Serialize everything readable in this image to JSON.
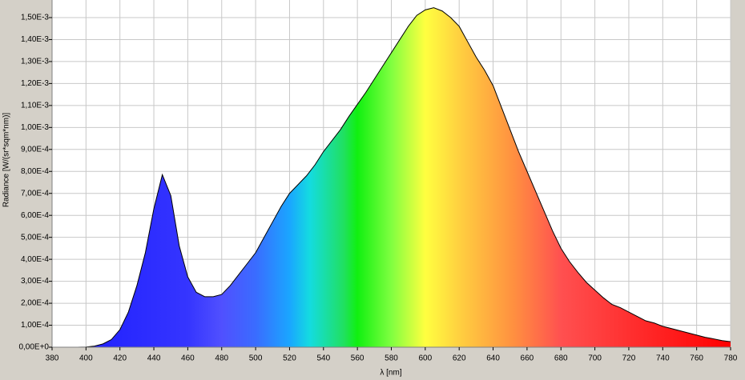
{
  "chart_data": {
    "type": "area",
    "xlabel": "λ [nm]",
    "ylabel": "Radiance [W/(sr*sqm*nm)]",
    "x": [
      380,
      385,
      390,
      395,
      400,
      405,
      410,
      415,
      420,
      425,
      430,
      435,
      440,
      445,
      450,
      455,
      460,
      465,
      470,
      475,
      480,
      485,
      490,
      495,
      500,
      505,
      510,
      515,
      520,
      525,
      530,
      535,
      540,
      545,
      550,
      555,
      560,
      565,
      570,
      575,
      580,
      585,
      590,
      595,
      600,
      605,
      610,
      615,
      620,
      625,
      630,
      635,
      640,
      645,
      650,
      655,
      660,
      665,
      670,
      675,
      680,
      685,
      690,
      695,
      700,
      705,
      710,
      715,
      720,
      725,
      730,
      735,
      740,
      745,
      750,
      755,
      760,
      765,
      770,
      775,
      780
    ],
    "values": [
      0,
      0,
      0,
      0,
      1e-06,
      5e-06,
      1.5e-05,
      3.5e-05,
      8e-05,
      0.00016,
      0.00028,
      0.00043,
      0.00063,
      0.000785,
      0.00069,
      0.00046,
      0.00032,
      0.00025,
      0.00023,
      0.00023,
      0.00024,
      0.00028,
      0.00033,
      0.00038,
      0.00043,
      0.0005,
      0.00057,
      0.00064,
      0.0007,
      0.00074,
      0.00078,
      0.00083,
      0.00089,
      0.00094,
      0.00099,
      0.00105,
      0.001105,
      0.00116,
      0.00122,
      0.00128,
      0.00134,
      0.0014,
      0.00146,
      0.00151,
      0.001535,
      0.001545,
      0.00153,
      0.0015,
      0.00146,
      0.00139,
      0.00132,
      0.00126,
      0.00119,
      0.00109,
      0.00099,
      0.00089,
      0.0008,
      0.00071,
      0.00062,
      0.00053,
      0.00045,
      0.00039,
      0.00034,
      0.000295,
      0.00026,
      0.000225,
      0.000195,
      0.00018,
      0.00016,
      0.00014,
      0.00012,
      0.00011,
      9.5e-05,
      8.5e-05,
      7.5e-05,
      6.5e-05,
      5.5e-05,
      4.5e-05,
      3.8e-05,
      3e-05,
      2.5e-05
    ],
    "xlim": [
      380,
      780
    ],
    "xticks": [
      380,
      400,
      420,
      440,
      460,
      480,
      500,
      520,
      540,
      560,
      580,
      600,
      620,
      640,
      660,
      680,
      700,
      720,
      740,
      760,
      780
    ],
    "ylim": [
      0,
      0.00158
    ],
    "yticks": [
      {
        "value": 0,
        "label": "0,00E+0"
      },
      {
        "value": 0.0001,
        "label": "1,00E-4"
      },
      {
        "value": 0.0002,
        "label": "2,00E-4"
      },
      {
        "value": 0.0003,
        "label": "3,00E-4"
      },
      {
        "value": 0.0004,
        "label": "4,00E-4"
      },
      {
        "value": 0.0005,
        "label": "5,00E-4"
      },
      {
        "value": 0.0006,
        "label": "6,00E-4"
      },
      {
        "value": 0.0007,
        "label": "7,00E-4"
      },
      {
        "value": 0.0008,
        "label": "8,00E-4"
      },
      {
        "value": 0.0009,
        "label": "9,00E-4"
      },
      {
        "value": 0.001,
        "label": "1,00E-3"
      },
      {
        "value": 0.0011,
        "label": "1,10E-3"
      },
      {
        "value": 0.0012,
        "label": "1,20E-3"
      },
      {
        "value": 0.0013,
        "label": "1,30E-3"
      },
      {
        "value": 0.0014,
        "label": "1,40E-3"
      },
      {
        "value": 0.0015,
        "label": "1,50E-3"
      }
    ],
    "grid": true,
    "line_color": "#000000"
  }
}
